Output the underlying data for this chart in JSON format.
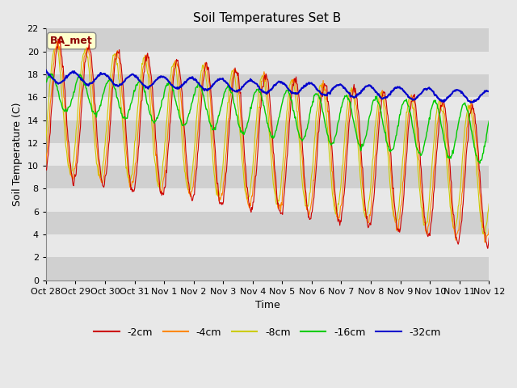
{
  "title": "Soil Temperatures Set B",
  "xlabel": "Time",
  "ylabel": "Soil Temperature (C)",
  "annotation": "BA_met",
  "ylim": [
    0,
    22
  ],
  "yticks": [
    0,
    2,
    4,
    6,
    8,
    10,
    12,
    14,
    16,
    18,
    20,
    22
  ],
  "xtick_labels": [
    "Oct 28",
    "Oct 29",
    "Oct 30",
    "Oct 31",
    "Nov 1",
    "Nov 2",
    "Nov 3",
    "Nov 4",
    "Nov 5",
    "Nov 6",
    "Nov 7",
    "Nov 8",
    "Nov 9",
    "Nov 10",
    "Nov 11",
    "Nov 12"
  ],
  "colors": {
    "-2cm": "#cc0000",
    "-4cm": "#ff8800",
    "-8cm": "#cccc00",
    "-16cm": "#00cc00",
    "-32cm": "#0000cc"
  },
  "bg_color": "#e8e8e8",
  "plot_bg": "#e8e8e8",
  "band_color_dark": "#d0d0d0",
  "band_color_light": "#e8e8e8",
  "title_fontsize": 11,
  "axis_label_fontsize": 9,
  "tick_fontsize": 8,
  "legend_fontsize": 9
}
